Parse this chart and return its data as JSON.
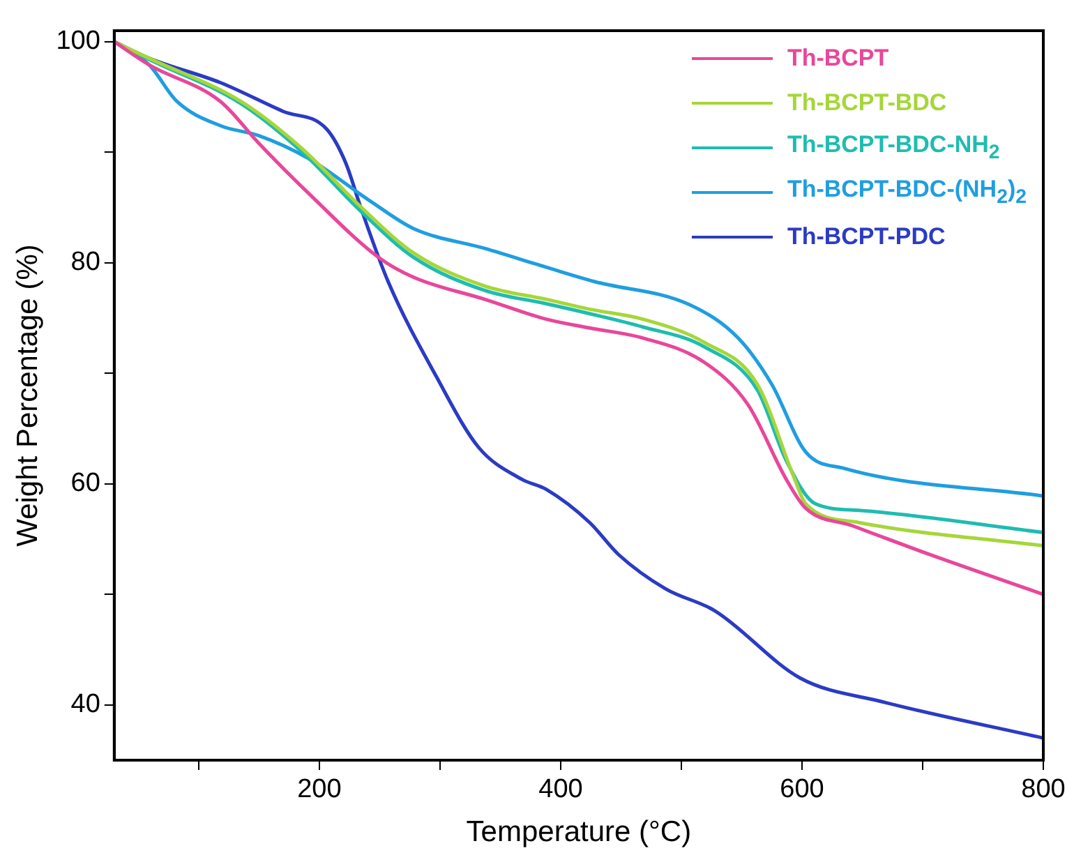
{
  "chart_data": {
    "type": "line",
    "xlabel": "Temperature (°C)",
    "ylabel": "Weight Percentage (%)",
    "xlim": [
      30,
      800
    ],
    "ylim": [
      35,
      101
    ],
    "xticks": [
      {
        "value": 100,
        "label": null
      },
      200,
      {
        "value": 300,
        "label": null
      },
      400,
      {
        "value": 500,
        "label": null
      },
      600,
      {
        "value": 700,
        "label": null
      },
      800
    ],
    "yticks": [
      40,
      {
        "value": 50,
        "label": null
      },
      60,
      {
        "value": 70,
        "label": null
      },
      80,
      {
        "value": 90,
        "label": null
      },
      100
    ],
    "grid": false,
    "legend": "top right",
    "marker": "none",
    "line_style": "solid",
    "series": [
      {
        "name": "Th-BCPT",
        "color": "#e8479a",
        "x": [
          30,
          59,
          118,
          150,
          190,
          249,
          278,
          337,
          388,
          424,
          468,
          519,
          555,
          587,
          603,
          642,
          706,
          800
        ],
        "values": [
          100,
          97.9,
          94.6,
          90.8,
          86.4,
          80.5,
          78.7,
          76.7,
          74.9,
          74.1,
          73.2,
          71,
          67.2,
          60.4,
          57.8,
          56.2,
          53.6,
          50
        ]
      },
      {
        "name": "Th-BCPT-BDC",
        "color": "#a6d63a",
        "x": [
          30,
          59,
          135,
          186,
          234,
          278,
          337,
          388,
          424,
          468,
          519,
          563,
          594,
          603,
          647,
          800
        ],
        "values": [
          100,
          98.5,
          94.6,
          90.3,
          85.1,
          80.9,
          77.9,
          76.7,
          75.8,
          74.9,
          72.8,
          69,
          60.4,
          58.2,
          56.5,
          54.4
        ]
      },
      {
        "name": "Th-BCPT-BDC-NH$_{2}$",
        "color": "#1fbcb0",
        "x": [
          30,
          59,
          135,
          186,
          234,
          278,
          337,
          388,
          424,
          468,
          519,
          563,
          587,
          611,
          647,
          800
        ],
        "values": [
          100,
          98.4,
          94.4,
          90,
          84.7,
          80.5,
          77.5,
          76.3,
          75.4,
          74.2,
          72.4,
          68.5,
          62.1,
          58.2,
          57.6,
          55.6
        ]
      },
      {
        "name": "Th-BCPT-BDC-(NH$_{2}$)$_{2}$",
        "color": "#1f9ee0",
        "x": [
          30,
          59,
          82,
          118,
          150,
          190,
          242,
          278,
          337,
          388,
          428,
          507,
          547,
          575,
          603,
          635,
          800
        ],
        "values": [
          100,
          97.9,
          94.6,
          92.4,
          91.5,
          89.5,
          85.6,
          83.1,
          81.3,
          79.6,
          78.3,
          76.2,
          73.2,
          69,
          62.9,
          61.4,
          58.9
        ]
      },
      {
        "name": "Th-BCPT-PDC",
        "color": "#2b3bc4",
        "x": [
          30,
          59,
          118,
          170,
          206,
          222,
          234,
          257,
          297,
          332,
          368,
          388,
          424,
          448,
          487,
          528,
          599,
          666,
          800
        ],
        "values": [
          100,
          98.5,
          96.3,
          93.7,
          92.1,
          89,
          85.1,
          78.3,
          69.7,
          63.3,
          60.4,
          59.5,
          56.5,
          53.6,
          50.5,
          48.5,
          42.4,
          40.3,
          37
        ]
      }
    ]
  }
}
